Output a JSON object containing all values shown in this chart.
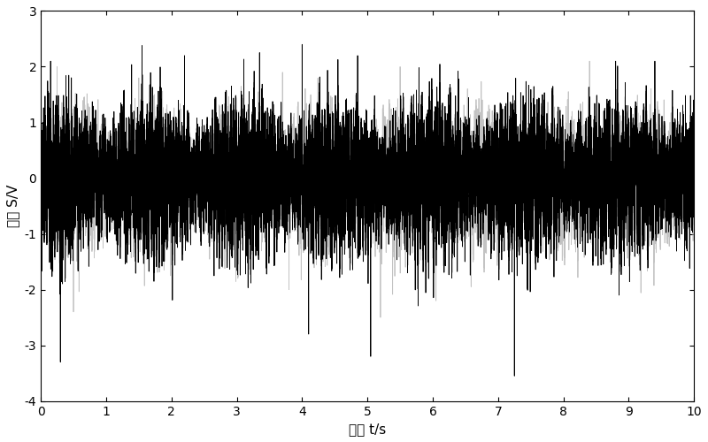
{
  "title": "",
  "xlabel": "时间 t/s",
  "ylabel": "幅度 S/V",
  "xlim": [
    0,
    10
  ],
  "ylim": [
    -4,
    3
  ],
  "xticks": [
    0,
    1,
    2,
    3,
    4,
    5,
    6,
    7,
    8,
    9,
    10
  ],
  "yticks": [
    -4,
    -3,
    -2,
    -1,
    0,
    1,
    2,
    3
  ],
  "line_color_black": "#000000",
  "line_color_gray": "#aaaaaa",
  "line_width": 0.6,
  "background_color": "#ffffff",
  "fs": 4096,
  "duration": 10,
  "seed1": 1234,
  "seed2": 5678,
  "figsize": [
    8.0,
    5.0
  ],
  "dpi": 100,
  "ylabel_fontsize": 11,
  "xlabel_fontsize": 11,
  "tick_fontsize": 10
}
